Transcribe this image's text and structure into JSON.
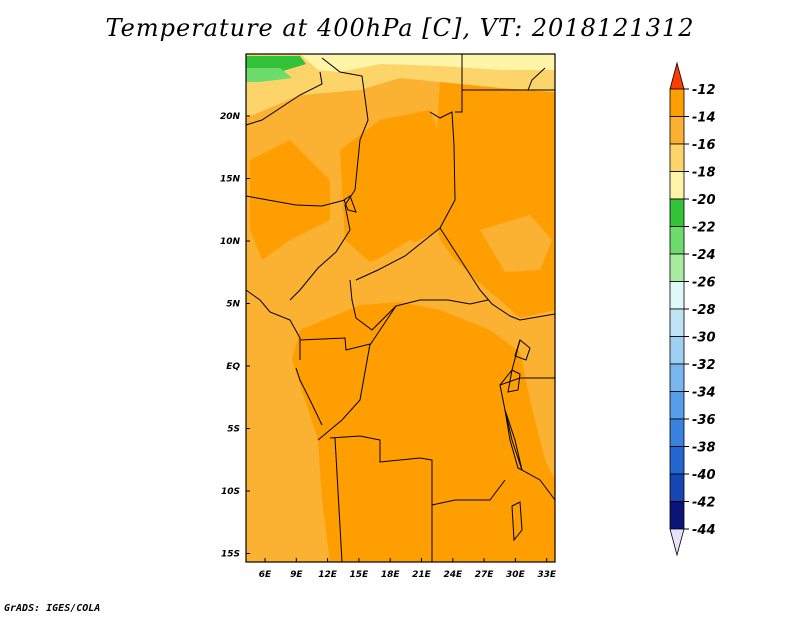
{
  "title": "Temperature at 400hPa [C], VT: 2018121312",
  "footer": "GrADS: IGES/COLA",
  "map": {
    "lon_labels": [
      "6E",
      "9E",
      "12E",
      "15E",
      "18E",
      "21E",
      "24E",
      "27E",
      "30E",
      "33E"
    ],
    "lat_labels": [
      "20N",
      "15N",
      "10N",
      "5N",
      "EQ",
      "5S",
      "10S",
      "15S"
    ]
  },
  "colorbar": {
    "labels": [
      "-12",
      "-14",
      "-16",
      "-18",
      "-20",
      "-22",
      "-24",
      "-26",
      "-28",
      "-30",
      "-32",
      "-34",
      "-36",
      "-38",
      "-40",
      "-42",
      "-44"
    ],
    "colors": [
      "#ff6a00",
      "#ff9e00",
      "#fbb232",
      "#fdd46a",
      "#fff4a8",
      "#33c23a",
      "#6cdd6c",
      "#a8eca0",
      "#dff8f8",
      "#bfe4f6",
      "#9fd0f2",
      "#78b6ee",
      "#569eec",
      "#3a82e0",
      "#2466d0",
      "#1446b4",
      "#0c1478"
    ],
    "top_arrow_color": "#ff3c00",
    "bottom_arrow_color": "#e6e2fa"
  }
}
